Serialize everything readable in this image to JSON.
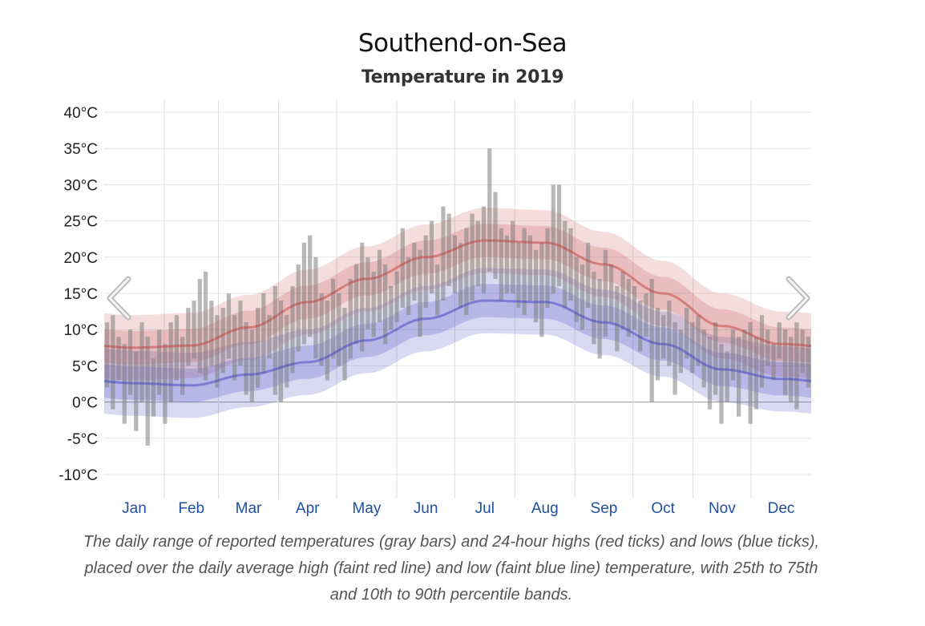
{
  "chart_data": {
    "type": "bar",
    "title": "Southend-on-Sea",
    "subtitle": "Temperature in 2019",
    "ylabel": "",
    "ylim": [
      -13,
      42
    ],
    "yticks": [
      "40°C",
      "35°C",
      "30°C",
      "25°C",
      "20°C",
      "15°C",
      "10°C",
      "5°C",
      "0°C",
      "-5°C",
      "-10°C"
    ],
    "ytick_values": [
      40,
      35,
      30,
      25,
      20,
      15,
      10,
      5,
      0,
      -5,
      -10
    ],
    "months": [
      "Jan",
      "Feb",
      "Mar",
      "Apr",
      "May",
      "Jun",
      "Jul",
      "Aug",
      "Sep",
      "Oct",
      "Nov",
      "Dec"
    ],
    "month_days": [
      31,
      28,
      31,
      30,
      31,
      30,
      31,
      31,
      30,
      31,
      30,
      31
    ],
    "grid": true,
    "daily_range_note": "3-day resolution approximation of daily ranges (°C)",
    "range_high": [
      11,
      12,
      9,
      8,
      10,
      7,
      11,
      9,
      6,
      10,
      8,
      11,
      12,
      9,
      13,
      14,
      17,
      18,
      14,
      12,
      13,
      15,
      12,
      14,
      11,
      10,
      13,
      15,
      12,
      16,
      14,
      12,
      16,
      19,
      22,
      23,
      20,
      15,
      14,
      17,
      15,
      13,
      17,
      19,
      22,
      20,
      18,
      21,
      19,
      16,
      18,
      24,
      20,
      22,
      21,
      23,
      25,
      19,
      27,
      26,
      23,
      22,
      24,
      26,
      25,
      27,
      35,
      29,
      24,
      23,
      25,
      22,
      24,
      23,
      21,
      22,
      24,
      30,
      30,
      25,
      24,
      20,
      19,
      22,
      18,
      17,
      21,
      19,
      16,
      18,
      17,
      16,
      14,
      15,
      17,
      13,
      12,
      14,
      11,
      10,
      13,
      11,
      12,
      10,
      9,
      11,
      8,
      7,
      10,
      9,
      10,
      11,
      9,
      12,
      10,
      8,
      11,
      10,
      9,
      11,
      10,
      9
    ],
    "range_low": [
      2,
      -1,
      3,
      -3,
      1,
      -4,
      0,
      -6,
      -2,
      1,
      -3,
      0,
      3,
      1,
      5,
      6,
      4,
      3,
      5,
      2,
      4,
      6,
      3,
      5,
      1,
      0,
      2,
      4,
      6,
      1,
      0,
      2,
      4,
      7,
      8,
      9,
      6,
      5,
      3,
      6,
      5,
      3,
      6,
      8,
      7,
      10,
      9,
      11,
      8,
      10,
      11,
      13,
      12,
      14,
      9,
      13,
      15,
      12,
      14,
      16,
      15,
      13,
      12,
      14,
      16,
      15,
      18,
      17,
      14,
      15,
      15,
      13,
      12,
      14,
      11,
      9,
      13,
      15,
      16,
      13,
      14,
      11,
      10,
      13,
      8,
      6,
      9,
      11,
      7,
      10,
      9,
      10,
      7,
      9,
      0,
      3,
      6,
      5,
      1,
      4,
      6,
      4,
      5,
      2,
      -1,
      1,
      -3,
      0,
      3,
      -2,
      4,
      -3,
      -1,
      2,
      5,
      3,
      6,
      1,
      0,
      -1,
      4,
      2
    ],
    "avg_high_monthly": [
      7.5,
      7.8,
      10.3,
      13.8,
      17,
      20,
      22.3,
      22,
      19,
      15,
      10.5,
      8
    ],
    "avg_low_monthly": [
      2.6,
      2.3,
      3.8,
      5.5,
      8.5,
      11.5,
      14,
      13.8,
      11,
      8,
      4.5,
      3.2
    ],
    "band_25_75_halfwidth": 2.3,
    "band_10_90_halfwidth": 4.5,
    "colors": {
      "bars": "#808080",
      "high": "#c04040",
      "low": "#4040c0",
      "month_label": "#2050a0"
    }
  },
  "caption": "The daily range of reported temperatures (gray bars) and 24-hour highs (red ticks) and lows (blue ticks), placed over the daily average high (faint red line) and low (faint blue line) temperature, with 25th to 75th and 10th to 90th percentile bands.",
  "nav": {
    "prev_icon": "chevron-left-icon",
    "next_icon": "chevron-right-icon"
  }
}
